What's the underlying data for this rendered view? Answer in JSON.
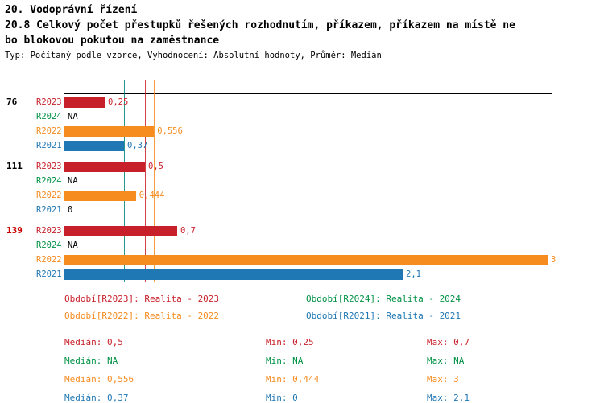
{
  "header": {
    "line1": "20. Vodoprávní řízení",
    "line2": "20.8 Celkový počet přestupků řešených rozhodnutím, příkazem, příkazem na místě ne",
    "line3": "bo blokovou pokutou na zaměstnance",
    "meta": "Typ: Počítaný podle vzorce, Vyhodnocení: Absolutní hodnoty, Průměr: Medián"
  },
  "colors": {
    "r2023": "#c8202a",
    "r2024": "#009245",
    "r2022": "#f68b1f",
    "r2021": "#1f77b4",
    "group_highlight": "#cc0000",
    "axis": "#000000"
  },
  "chart_data": {
    "type": "bar",
    "orientation": "horizontal",
    "xlim": [
      0,
      3
    ],
    "series_order": [
      "R2023",
      "R2024",
      "R2022",
      "R2021"
    ],
    "groups": [
      {
        "label": "76",
        "highlight": false,
        "bars": [
          {
            "series": "R2023",
            "value": 0.25,
            "display": "0,25"
          },
          {
            "series": "R2024",
            "value": null,
            "display": "NA"
          },
          {
            "series": "R2022",
            "value": 0.556,
            "display": "0,556"
          },
          {
            "series": "R2021",
            "value": 0.37,
            "display": "0,37"
          }
        ]
      },
      {
        "label": "111",
        "highlight": false,
        "bars": [
          {
            "series": "R2023",
            "value": 0.5,
            "display": "0,5"
          },
          {
            "series": "R2024",
            "value": null,
            "display": "NA"
          },
          {
            "series": "R2022",
            "value": 0.444,
            "display": "0,444"
          },
          {
            "series": "R2021",
            "value": 0,
            "display": "0"
          }
        ]
      },
      {
        "label": "139",
        "highlight": true,
        "bars": [
          {
            "series": "R2023",
            "value": 0.7,
            "display": "0,7"
          },
          {
            "series": "R2024",
            "value": null,
            "display": "NA"
          },
          {
            "series": "R2022",
            "value": 3,
            "display": "3"
          },
          {
            "series": "R2021",
            "value": 2.1,
            "display": "2,1"
          }
        ]
      }
    ],
    "median_lines": [
      {
        "series": "R2023",
        "value": 0.5
      },
      {
        "series": "R2022",
        "value": 0.556
      },
      {
        "series": "R2021",
        "value": 0.37
      }
    ]
  },
  "legend": [
    {
      "series": "R2023",
      "label": "Období[R2023]: Realita - 2023"
    },
    {
      "series": "R2024",
      "label": "Období[R2024]: Realita - 2024"
    },
    {
      "series": "R2022",
      "label": "Období[R2022]: Realita - 2022"
    },
    {
      "series": "R2021",
      "label": "Období[R2021]: Realita - 2021"
    }
  ],
  "stats": [
    {
      "series": "R2023",
      "median": "Medián: 0,5",
      "min": "Min: 0,25",
      "max": "Max: 0,7"
    },
    {
      "series": "R2024",
      "median": "Medián: NA",
      "min": "Min: NA",
      "max": "Max: NA"
    },
    {
      "series": "R2022",
      "median": "Medián: 0,556",
      "min": "Min: 0,444",
      "max": "Max: 3"
    },
    {
      "series": "R2021",
      "median": "Medián: 0,37",
      "min": "Min: 0",
      "max": "Max: 2,1"
    }
  ]
}
